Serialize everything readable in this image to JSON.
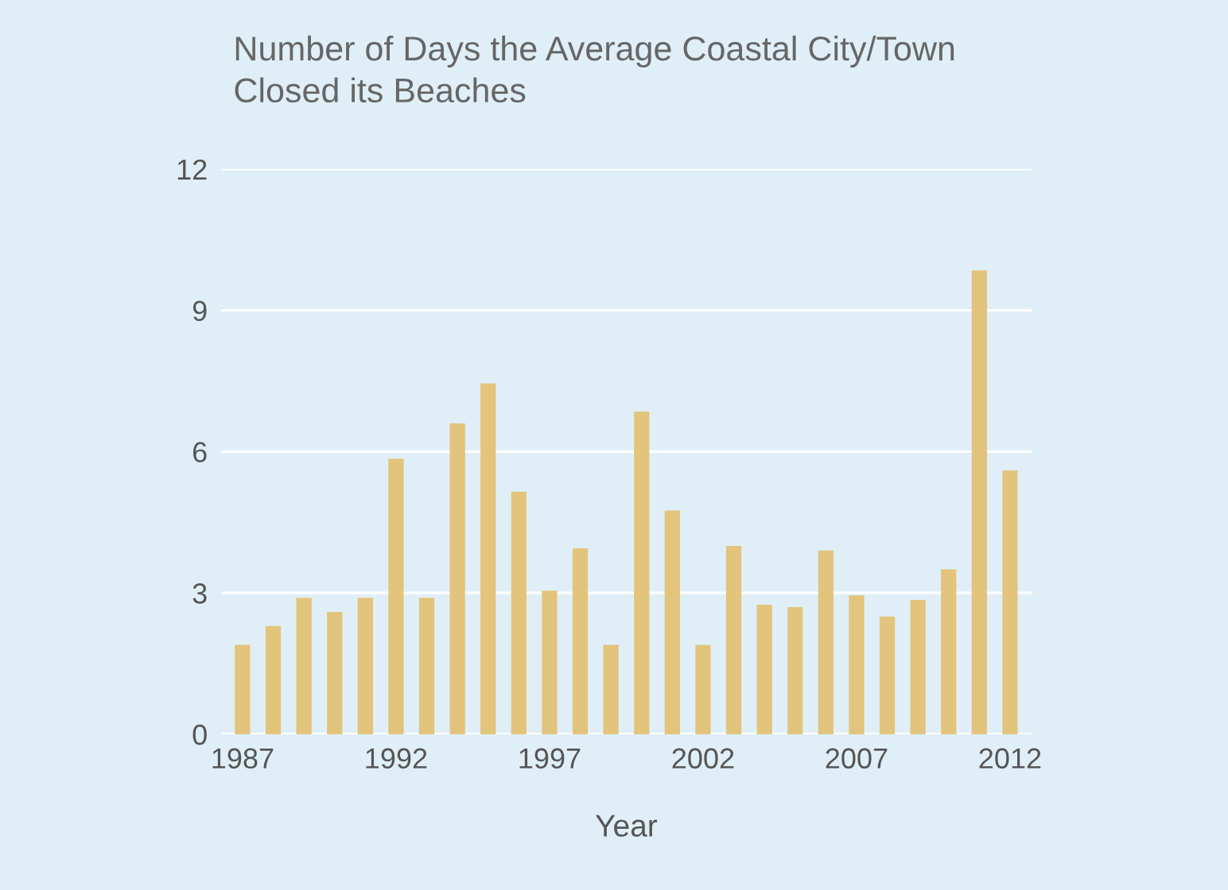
{
  "chart_data": {
    "type": "bar",
    "title": "Number of Days the Average Coastal City/Town\nClosed its Beaches",
    "xlabel": "Year",
    "x": [
      1987,
      1988,
      1989,
      1990,
      1991,
      1992,
      1993,
      1994,
      1995,
      1996,
      1997,
      1998,
      1999,
      2000,
      2001,
      2002,
      2003,
      2004,
      2005,
      2006,
      2007,
      2008,
      2009,
      2010,
      2011,
      2012
    ],
    "values": [
      1.9,
      2.3,
      2.9,
      2.6,
      2.9,
      5.85,
      2.9,
      6.6,
      7.45,
      5.15,
      3.05,
      3.95,
      1.9,
      6.85,
      4.75,
      1.9,
      4.0,
      2.75,
      2.7,
      3.9,
      2.95,
      2.5,
      2.85,
      3.5,
      9.85,
      5.6
    ],
    "color": "#e2c47c",
    "xlim": [
      1986.3,
      2012.7
    ],
    "xticks": [
      1987,
      1992,
      1997,
      2002,
      2007,
      2012
    ],
    "ylim": [
      0,
      12
    ],
    "yticks": [
      0,
      3,
      6,
      9,
      12
    ],
    "grid": "y"
  }
}
